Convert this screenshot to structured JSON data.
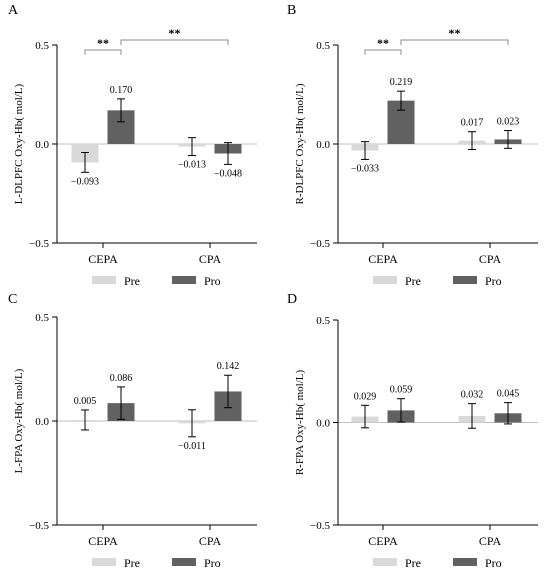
{
  "colors": {
    "pre": "#d9d9d9",
    "pro": "#616161",
    "axis": "#000000",
    "bracket": "#8c8c8c"
  },
  "legend": {
    "pre": "Pre",
    "pro": "Pro"
  },
  "chart_data": [
    {
      "type": "bar",
      "panel_label": "A",
      "ylabel": "L-DLPFC Oxy-Hb(  mol/L)",
      "ylim": [
        -0.5,
        0.5
      ],
      "yticks": [
        "0.5",
        "0.0",
        "−0.5"
      ],
      "categories": [
        "CEPA",
        "CPA"
      ],
      "series": [
        {
          "name": "Pre",
          "values": [
            -0.093,
            -0.013
          ],
          "errors": [
            0.05,
            0.045
          ],
          "labels": [
            "−0.093",
            "−0.013"
          ]
        },
        {
          "name": "Pro",
          "values": [
            0.17,
            -0.048
          ],
          "errors": [
            0.058,
            0.055
          ],
          "labels": [
            "0.170",
            "−0.048"
          ]
        }
      ],
      "significance": [
        {
          "from": "CEPA.Pre",
          "to": "CEPA.Pro",
          "label": "**"
        },
        {
          "from": "CEPA.Pro",
          "to": "CPA.Pro",
          "label": "**"
        }
      ]
    },
    {
      "type": "bar",
      "panel_label": "B",
      "ylabel": "R-DLPFC Oxy-Hb(  mol/L)",
      "ylim": [
        -0.5,
        0.5
      ],
      "yticks": [
        "0.5",
        "0.0",
        "−0.5"
      ],
      "categories": [
        "CEPA",
        "CPA"
      ],
      "series": [
        {
          "name": "Pre",
          "values": [
            -0.033,
            0.017
          ],
          "errors": [
            0.045,
            0.045
          ],
          "labels": [
            "−0.033",
            "0.017"
          ]
        },
        {
          "name": "Pro",
          "values": [
            0.219,
            0.023
          ],
          "errors": [
            0.048,
            0.045
          ],
          "labels": [
            "0.219",
            "0.023"
          ]
        }
      ],
      "significance": [
        {
          "from": "CEPA.Pre",
          "to": "CEPA.Pro",
          "label": "**"
        },
        {
          "from": "CEPA.Pro",
          "to": "CPA.Pro",
          "label": "**"
        }
      ]
    },
    {
      "type": "bar",
      "panel_label": "C",
      "ylabel": "L-FPA Oxy-Hb(  mol/L)",
      "ylim": [
        -0.5,
        0.5
      ],
      "yticks": [
        "0.5",
        "0.0",
        "−0.5"
      ],
      "categories": [
        "CEPA",
        "CPA"
      ],
      "series": [
        {
          "name": "Pre",
          "values": [
            0.005,
            -0.011
          ],
          "errors": [
            0.048,
            0.065
          ],
          "labels": [
            "0.005",
            "−0.011"
          ]
        },
        {
          "name": "Pro",
          "values": [
            0.086,
            0.142
          ],
          "errors": [
            0.078,
            0.078
          ],
          "labels": [
            "0.086",
            "0.142"
          ]
        }
      ],
      "significance": []
    },
    {
      "type": "bar",
      "panel_label": "D",
      "ylabel": "R-FPA Oxy-Hb(  mol/L)",
      "ylim": [
        -0.5,
        0.5
      ],
      "yticks": [
        "0.5",
        "0.0",
        "−0.5"
      ],
      "categories": [
        "CEPA",
        "CPA"
      ],
      "series": [
        {
          "name": "Pre",
          "values": [
            0.029,
            0.032
          ],
          "errors": [
            0.055,
            0.06
          ],
          "labels": [
            "0.029",
            "0.032"
          ]
        },
        {
          "name": "Pro",
          "values": [
            0.059,
            0.045
          ],
          "errors": [
            0.057,
            0.052
          ],
          "labels": [
            "0.059",
            "0.045"
          ]
        }
      ],
      "significance": []
    }
  ]
}
